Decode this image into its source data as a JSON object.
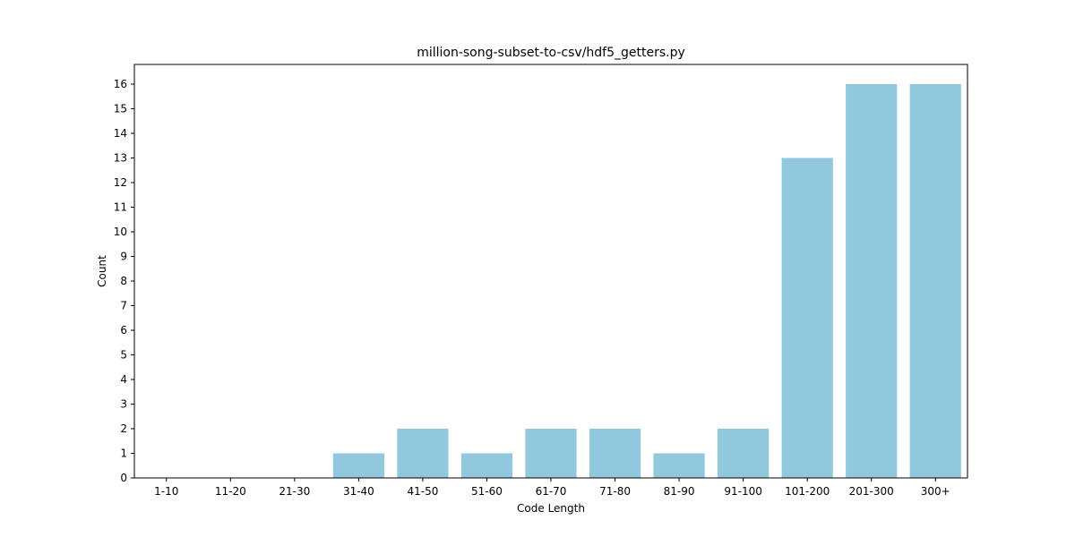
{
  "chart_data": {
    "type": "bar",
    "title": "million-song-subset-to-csv/hdf5_getters.py",
    "xlabel": "Code Length",
    "ylabel": "Count",
    "categories": [
      "1-10",
      "11-20",
      "21-30",
      "31-40",
      "41-50",
      "51-60",
      "61-70",
      "71-80",
      "81-90",
      "91-100",
      "101-200",
      "201-300",
      "300+"
    ],
    "values": [
      0,
      0,
      0,
      1,
      2,
      1,
      2,
      2,
      1,
      2,
      13,
      16,
      16
    ],
    "ylim": [
      0,
      16.8
    ],
    "yticks": [
      0,
      1,
      2,
      3,
      4,
      5,
      6,
      7,
      8,
      9,
      10,
      11,
      12,
      13,
      14,
      15,
      16
    ],
    "bar_color": "#92c8dd",
    "grid": false,
    "legend": "none"
  }
}
